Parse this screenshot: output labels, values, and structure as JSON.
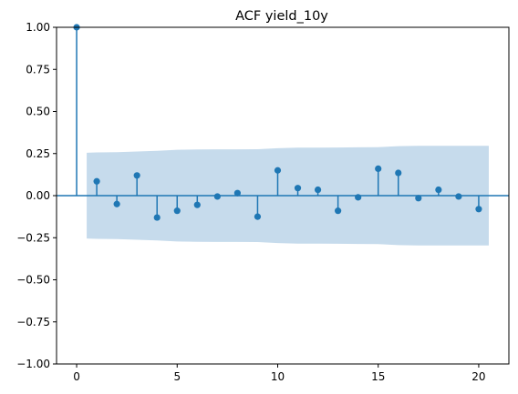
{
  "chart_data": {
    "type": "stem",
    "title": "ACF yield_10y",
    "xlabel": "",
    "ylabel": "",
    "xlim": [
      -1,
      21.5
    ],
    "ylim": [
      -1.0,
      1.0
    ],
    "x_ticks": [
      0,
      5,
      10,
      15,
      20
    ],
    "x_tick_labels": [
      "0",
      "5",
      "10",
      "15",
      "20"
    ],
    "y_ticks": [
      -1.0,
      -0.75,
      -0.5,
      -0.25,
      0.0,
      0.25,
      0.5,
      0.75,
      1.0
    ],
    "y_tick_labels": [
      "−1.00",
      "−0.75",
      "−0.50",
      "−0.25",
      "0.00",
      "0.25",
      "0.50",
      "0.75",
      "1.00"
    ],
    "lags": [
      0,
      1,
      2,
      3,
      4,
      5,
      6,
      7,
      8,
      9,
      10,
      11,
      12,
      13,
      14,
      15,
      16,
      17,
      18,
      19,
      20
    ],
    "acf": [
      1.0,
      0.085,
      -0.05,
      0.12,
      -0.13,
      -0.09,
      -0.055,
      -0.005,
      0.015,
      -0.125,
      0.15,
      0.045,
      0.035,
      -0.09,
      -0.01,
      0.16,
      0.135,
      -0.015,
      0.035,
      -0.005,
      -0.08
    ],
    "confidence_band": {
      "x": [
        0.5,
        1,
        2,
        3,
        4,
        5,
        6,
        7,
        8,
        9,
        10,
        11,
        12,
        13,
        14,
        15,
        16,
        17,
        18,
        19,
        20,
        20.5
      ],
      "upper": [
        0.255,
        0.257,
        0.258,
        0.262,
        0.266,
        0.272,
        0.274,
        0.275,
        0.275,
        0.276,
        0.282,
        0.285,
        0.285,
        0.286,
        0.287,
        0.288,
        0.294,
        0.296,
        0.296,
        0.296,
        0.296,
        0.296
      ]
    },
    "grid": false,
    "colors": {
      "stem": "#1f77b4",
      "band": "#c6dbec",
      "axis": "#000000"
    }
  }
}
